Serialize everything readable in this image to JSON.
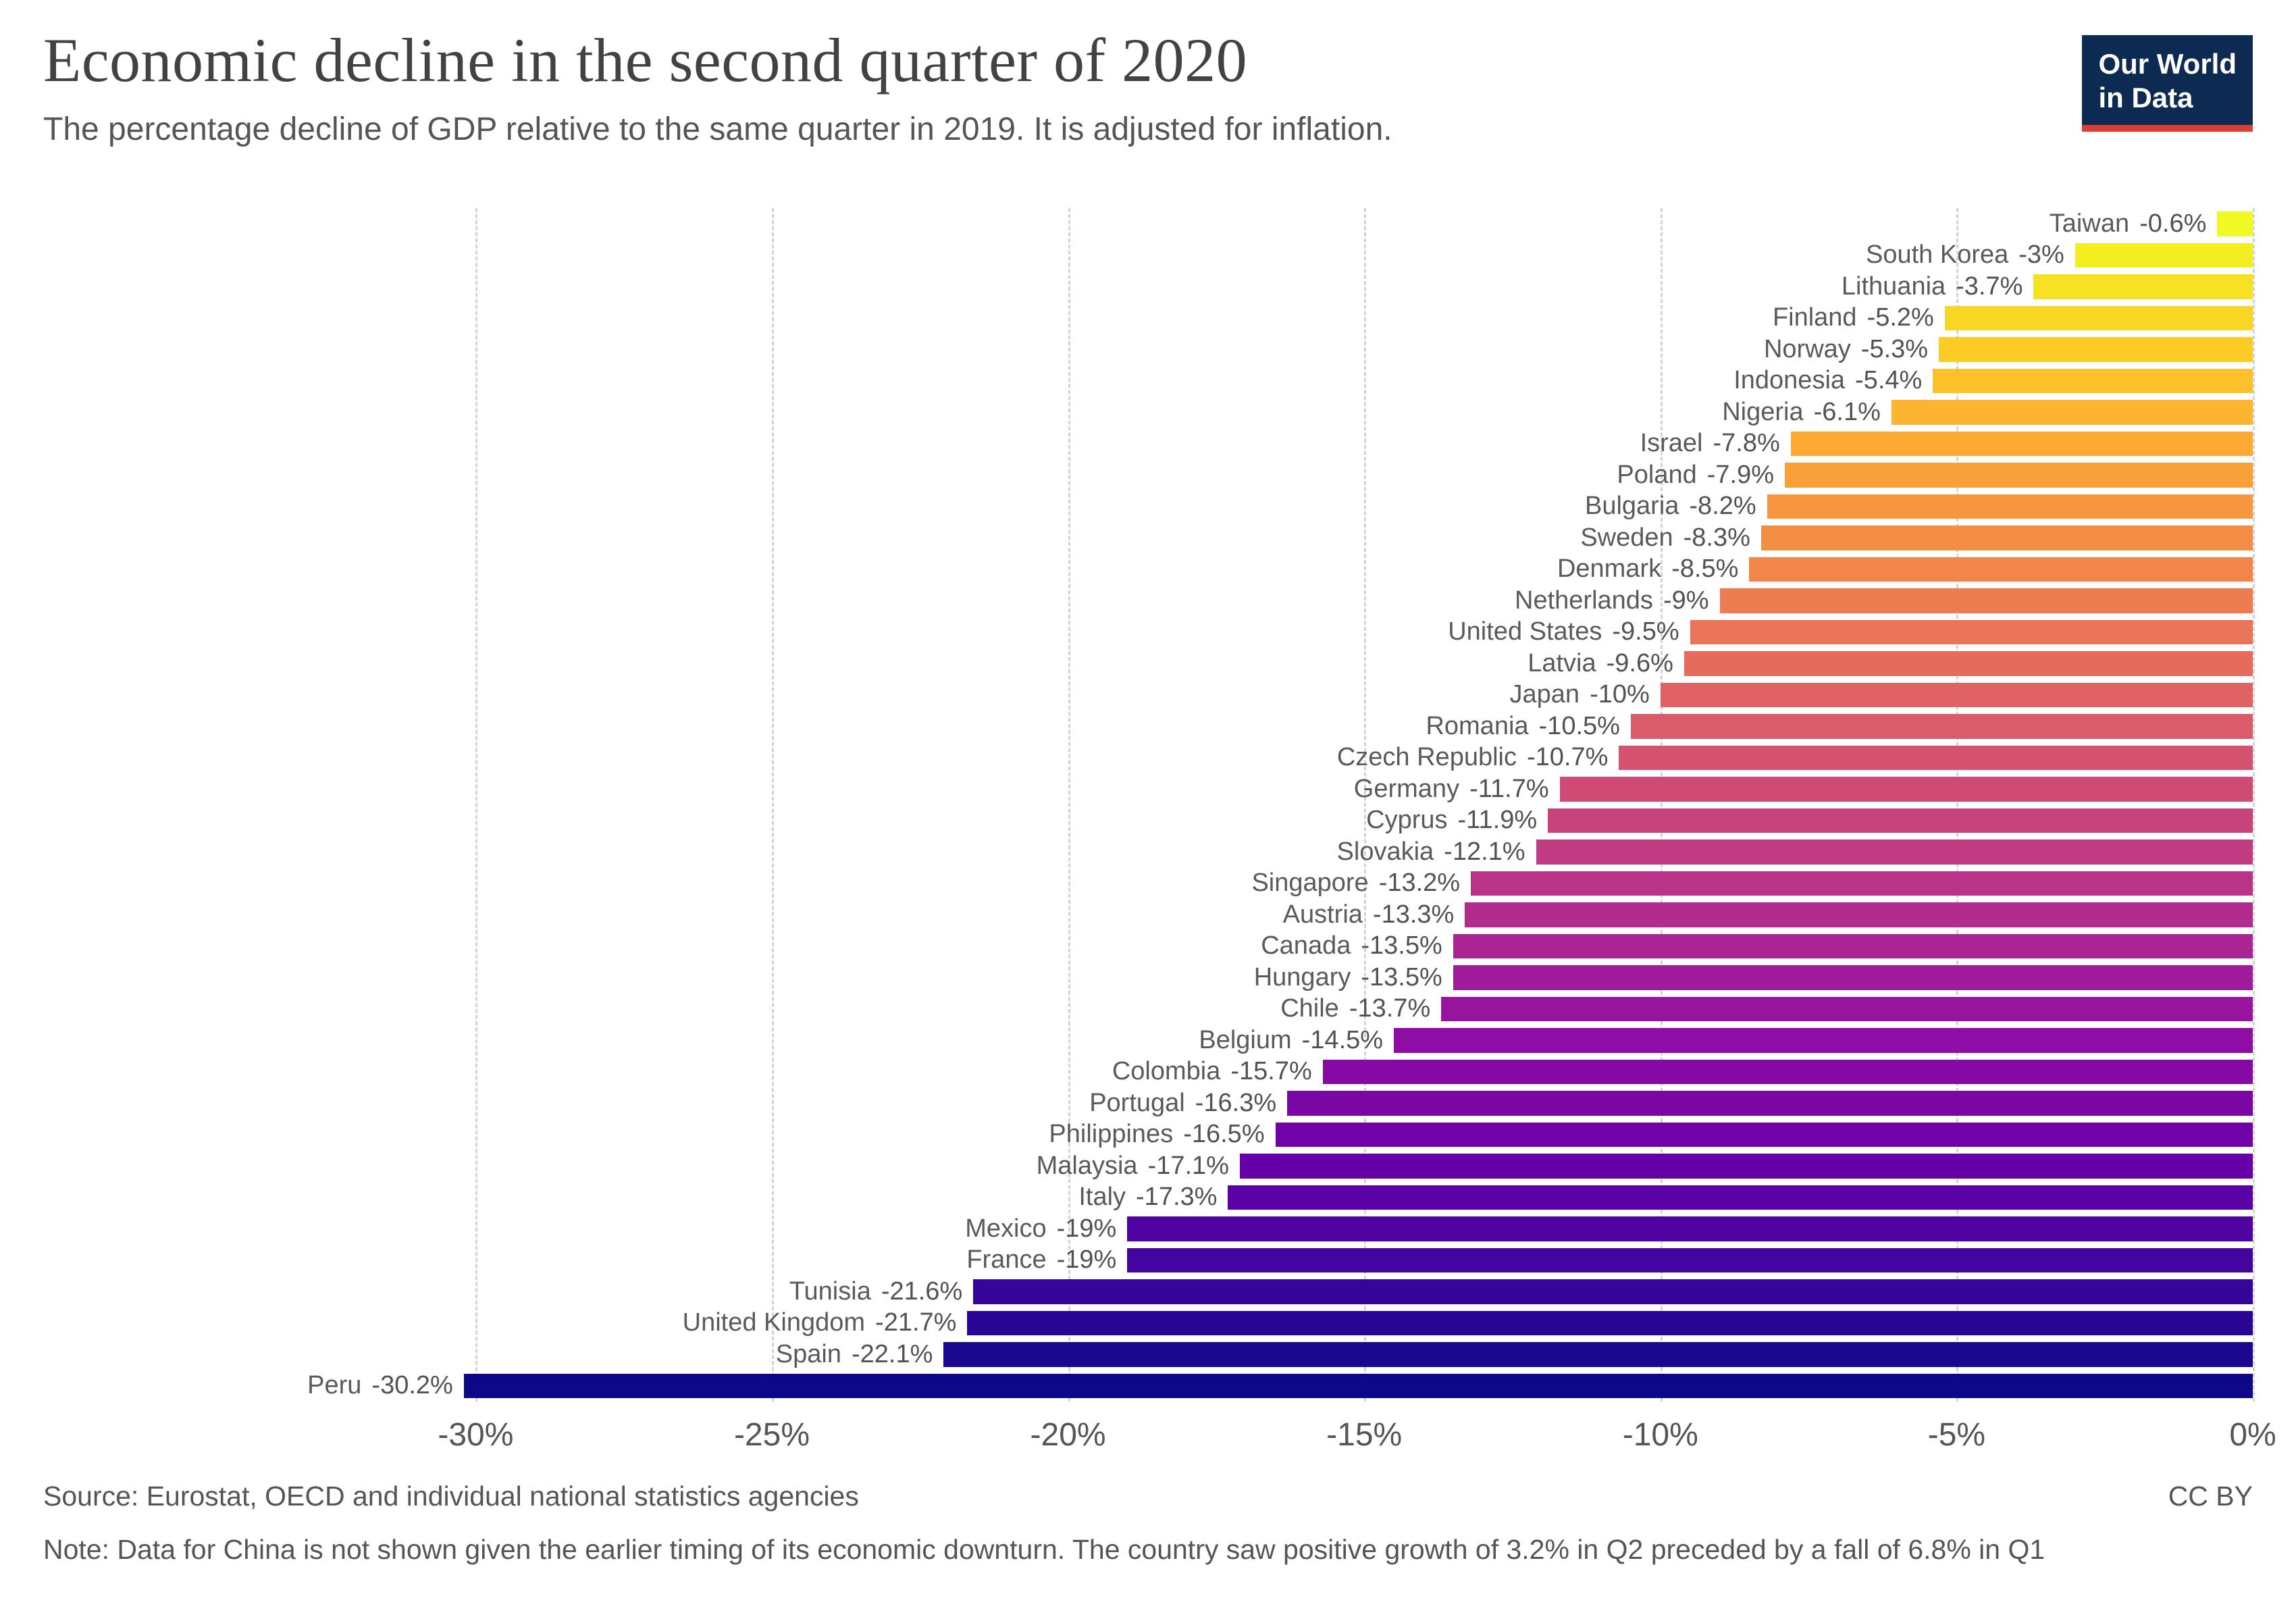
{
  "header": {
    "title": "Economic decline in the second quarter of 2020",
    "subtitle": "The percentage decline of GDP relative to the same quarter in 2019. It is adjusted for inflation.",
    "logo": {
      "line1": "Our World",
      "line2": "in Data",
      "bg_color": "#0d2b52",
      "accent_color": "#dc3e32"
    }
  },
  "chart_data": {
    "type": "bar",
    "orientation": "horizontal",
    "title": "Economic decline in the second quarter of 2020",
    "xlabel": "",
    "ylabel": "",
    "xlim": [
      -30,
      0
    ],
    "grid": "vertical-dashed",
    "legend": "none",
    "colormap": "plasma",
    "colormap_stops": [
      "#0d0887",
      "#41049d",
      "#6a00a8",
      "#8f0da4",
      "#b12a90",
      "#cc4778",
      "#e16462",
      "#f2844b",
      "#fca636",
      "#fcce25",
      "#f0f921"
    ],
    "x_tick_values": [
      -30,
      -25,
      -20,
      -15,
      -10,
      -5,
      0
    ],
    "x_ticks": [
      "-30%",
      "-25%",
      "-20%",
      "-15%",
      "-10%",
      "-5%",
      "0%"
    ],
    "series": [
      {
        "name": "Taiwan",
        "value": -0.6,
        "label": "-0.6%"
      },
      {
        "name": "South Korea",
        "value": -3,
        "label": "-3%"
      },
      {
        "name": "Lithuania",
        "value": -3.7,
        "label": "-3.7%"
      },
      {
        "name": "Finland",
        "value": -5.2,
        "label": "-5.2%"
      },
      {
        "name": "Norway",
        "value": -5.3,
        "label": "-5.3%"
      },
      {
        "name": "Indonesia",
        "value": -5.4,
        "label": "-5.4%"
      },
      {
        "name": "Nigeria",
        "value": -6.1,
        "label": "-6.1%"
      },
      {
        "name": "Israel",
        "value": -7.8,
        "label": "-7.8%"
      },
      {
        "name": "Poland",
        "value": -7.9,
        "label": "-7.9%"
      },
      {
        "name": "Bulgaria",
        "value": -8.2,
        "label": "-8.2%"
      },
      {
        "name": "Sweden",
        "value": -8.3,
        "label": "-8.3%"
      },
      {
        "name": "Denmark",
        "value": -8.5,
        "label": "-8.5%"
      },
      {
        "name": "Netherlands",
        "value": -9,
        "label": "-9%"
      },
      {
        "name": "United States",
        "value": -9.5,
        "label": "-9.5%"
      },
      {
        "name": "Latvia",
        "value": -9.6,
        "label": "-9.6%"
      },
      {
        "name": "Japan",
        "value": -10,
        "label": "-10%"
      },
      {
        "name": "Romania",
        "value": -10.5,
        "label": "-10.5%"
      },
      {
        "name": "Czech Republic",
        "value": -10.7,
        "label": "-10.7%"
      },
      {
        "name": "Germany",
        "value": -11.7,
        "label": "-11.7%"
      },
      {
        "name": "Cyprus",
        "value": -11.9,
        "label": "-11.9%"
      },
      {
        "name": "Slovakia",
        "value": -12.1,
        "label": "-12.1%"
      },
      {
        "name": "Singapore",
        "value": -13.2,
        "label": "-13.2%"
      },
      {
        "name": "Austria",
        "value": -13.3,
        "label": "-13.3%"
      },
      {
        "name": "Canada",
        "value": -13.5,
        "label": "-13.5%"
      },
      {
        "name": "Hungary",
        "value": -13.5,
        "label": "-13.5%"
      },
      {
        "name": "Chile",
        "value": -13.7,
        "label": "-13.7%"
      },
      {
        "name": "Belgium",
        "value": -14.5,
        "label": "-14.5%"
      },
      {
        "name": "Colombia",
        "value": -15.7,
        "label": "-15.7%"
      },
      {
        "name": "Portugal",
        "value": -16.3,
        "label": "-16.3%"
      },
      {
        "name": "Philippines",
        "value": -16.5,
        "label": "-16.5%"
      },
      {
        "name": "Malaysia",
        "value": -17.1,
        "label": "-17.1%"
      },
      {
        "name": "Italy",
        "value": -17.3,
        "label": "-17.3%"
      },
      {
        "name": "Mexico",
        "value": -19,
        "label": "-19%"
      },
      {
        "name": "France",
        "value": -19,
        "label": "-19%"
      },
      {
        "name": "Tunisia",
        "value": -21.6,
        "label": "-21.6%"
      },
      {
        "name": "United Kingdom",
        "value": -21.7,
        "label": "-21.7%"
      },
      {
        "name": "Spain",
        "value": -22.1,
        "label": "-22.1%"
      },
      {
        "name": "Peru",
        "value": -30.2,
        "label": "-30.2%"
      }
    ]
  },
  "footer": {
    "source": "Source: Eurostat, OECD and individual national statistics agencies",
    "license": "CC BY",
    "note": "Note: Data for China is not shown given the earlier timing of its economic downturn. The country saw positive growth of 3.2% in Q2 preceded by a fall of 6.8% in Q1"
  }
}
